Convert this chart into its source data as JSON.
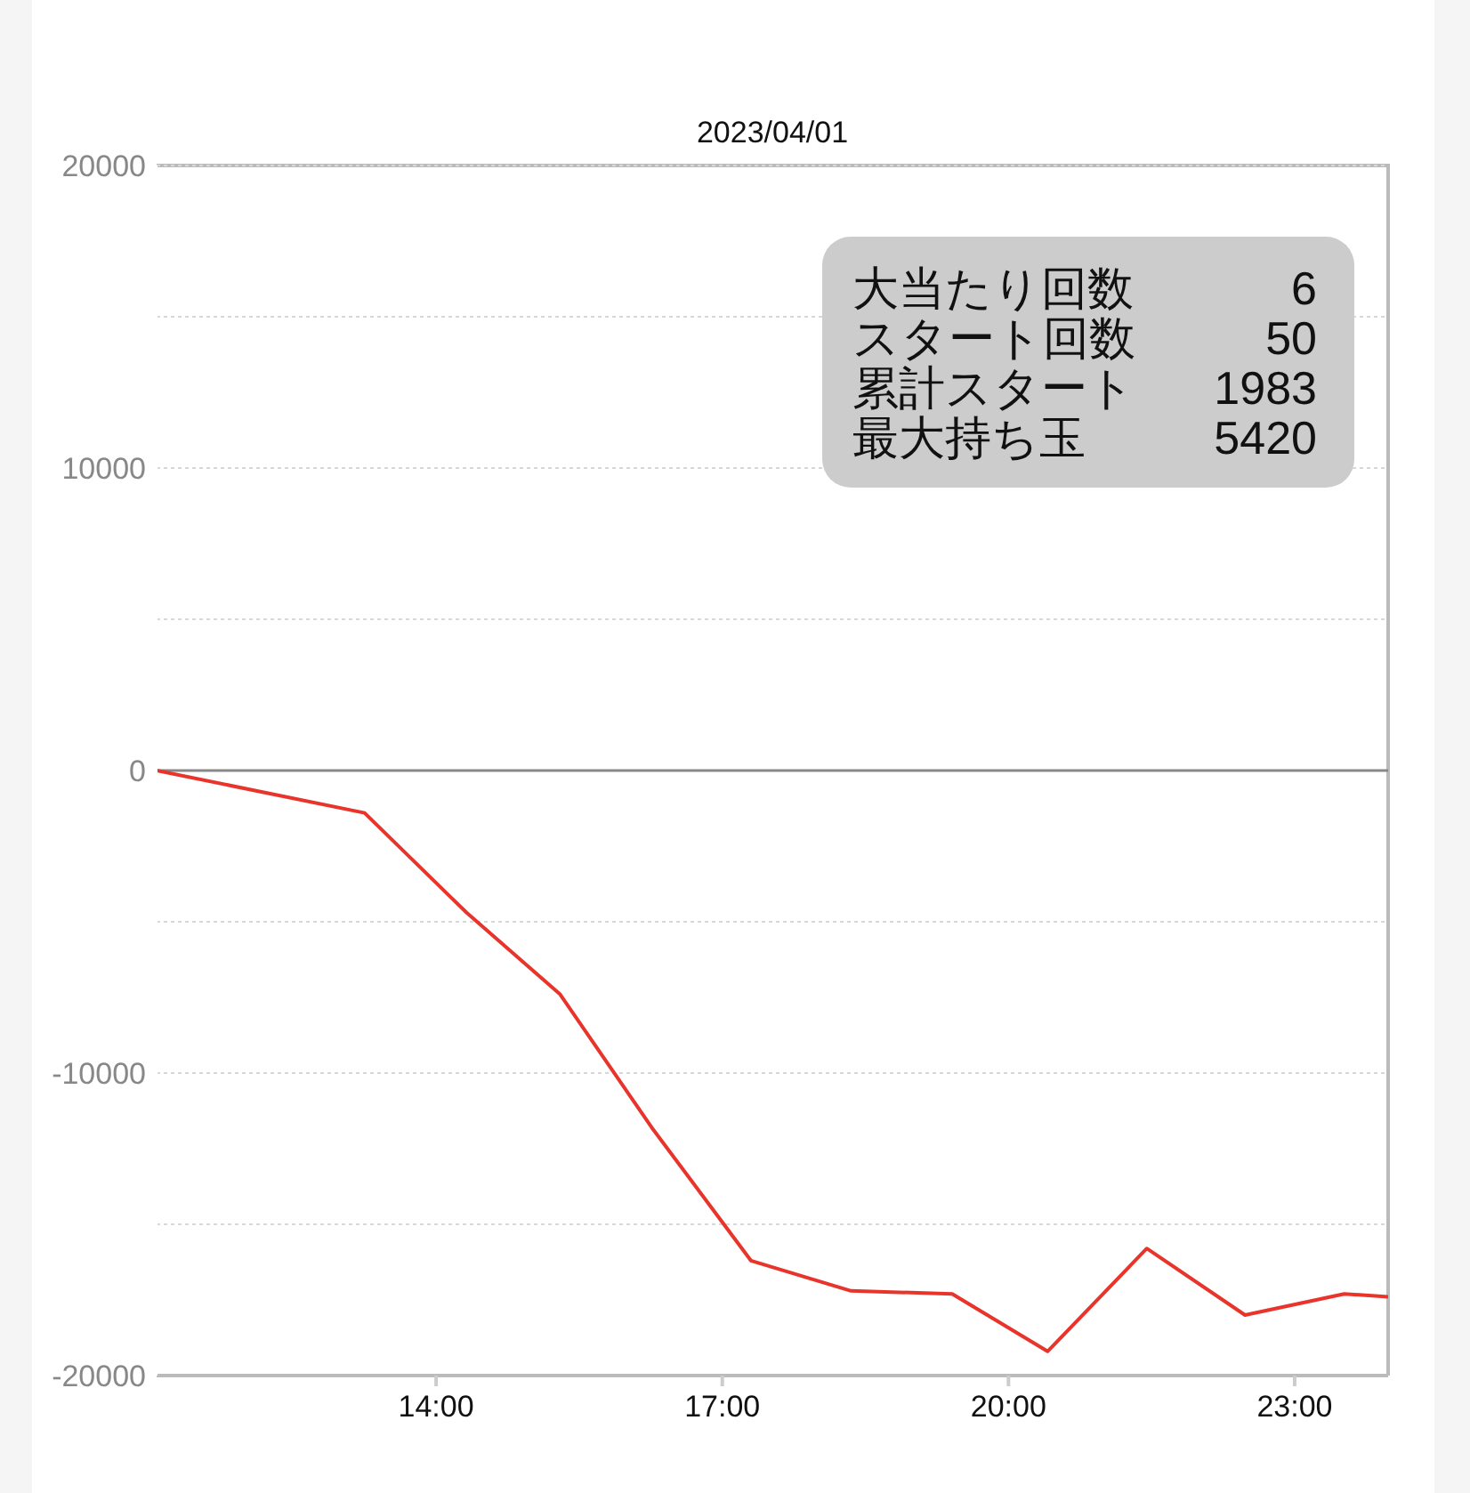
{
  "chart_data": {
    "type": "line",
    "title": "2023/04/01",
    "x": [
      11.07,
      13.25,
      14.32,
      15.3,
      16.26,
      17.3,
      18.35,
      19.41,
      20.41,
      21.45,
      22.48,
      23.52,
      23.98
    ],
    "series": [
      {
        "color": "#e8342a",
        "values": [
          0,
          -1400,
          -4700,
          -7400,
          -11800,
          -16200,
          -17200,
          -17300,
          -19200,
          -15800,
          -18000,
          -17300,
          -17400
        ]
      }
    ],
    "xlim": [
      11.07,
      23.98
    ],
    "xticks": [
      {
        "value": 14,
        "label": "14:00"
      },
      {
        "value": 17,
        "label": "17:00"
      },
      {
        "value": 20,
        "label": "20:00"
      },
      {
        "value": 23,
        "label": "23:00"
      }
    ],
    "ylim": [
      -20000,
      20000
    ],
    "yticks": [
      -20000,
      {
        "value": -15000,
        "label": null
      },
      -10000,
      {
        "value": -5000,
        "label": null
      },
      0,
      {
        "value": 5000,
        "label": null
      },
      10000,
      {
        "value": 15000,
        "label": null
      },
      20000
    ],
    "grid": "y",
    "marker": "none",
    "line_style": "solid",
    "ref_lines": [
      {
        "axis": "y",
        "value": 0,
        "color": "#888888"
      }
    ],
    "annotations": [
      "大当たり回数",
      "6",
      "スタート回数",
      "50",
      "累計スタート",
      "1983",
      "最大持ち玉",
      "5420"
    ]
  }
}
